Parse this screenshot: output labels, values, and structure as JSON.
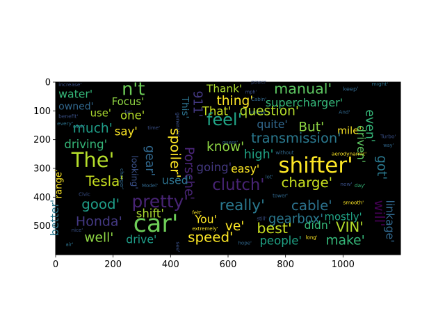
{
  "chart_data": {
    "type": "image",
    "title": "",
    "xlabel": "",
    "ylabel": "",
    "xlim": [
      0,
      1200
    ],
    "ylim": [
      600,
      0
    ],
    "xticks": [
      0,
      200,
      400,
      600,
      800,
      1000
    ],
    "yticks": [
      0,
      100,
      200,
      300,
      400,
      500
    ],
    "background": "#000000",
    "words": [
      {
        "text": "increase'",
        "x": 10,
        "y": 15,
        "size": 18,
        "rot": 0,
        "color": "#3b528b"
      },
      {
        "text": "water'",
        "x": 10,
        "y": 55,
        "size": 38,
        "rot": 0,
        "color": "#35b779"
      },
      {
        "text": "n't",
        "x": 230,
        "y": 45,
        "size": 62,
        "rot": 0,
        "color": "#6ece58"
      },
      {
        "text": "manual'",
        "x": 760,
        "y": 40,
        "size": 50,
        "rot": 0,
        "color": "#5ec962"
      },
      {
        "text": "keep'",
        "x": 1000,
        "y": 30,
        "size": 20,
        "rot": 0,
        "color": "#31688e"
      },
      {
        "text": "might'",
        "x": 1100,
        "y": 12,
        "size": 18,
        "rot": 0,
        "color": "#2c728e"
      },
      {
        "text": "power",
        "x": 680,
        "y": 5,
        "size": 17,
        "rot": 0,
        "color": "#3b528b"
      },
      {
        "text": "Thank'",
        "x": 525,
        "y": 35,
        "size": 37,
        "rot": 0,
        "color": "#addc30"
      },
      {
        "text": "911'",
        "x": 480,
        "y": 30,
        "size": 42,
        "rot": 90,
        "color": "#443983"
      },
      {
        "text": "owned'",
        "x": 10,
        "y": 95,
        "size": 34,
        "rot": 0,
        "color": "#31688e"
      },
      {
        "text": "Focus'",
        "x": 195,
        "y": 80,
        "size": 36,
        "rot": 0,
        "color": "#90d743"
      },
      {
        "text": "thing'",
        "x": 560,
        "y": 80,
        "size": 45,
        "rot": 0,
        "color": "#fde725"
      },
      {
        "text": "supercharger'",
        "x": 730,
        "y": 85,
        "size": 39,
        "rot": 0,
        "color": "#35b779"
      },
      {
        "text": "This'",
        "x": 440,
        "y": 50,
        "size": 33,
        "rot": 90,
        "color": "#2c728e"
      },
      {
        "text": "mph'",
        "x": 660,
        "y": 40,
        "size": 16,
        "rot": 0,
        "color": "#3b528b"
      },
      {
        "text": "Cabin'",
        "x": 680,
        "y": 65,
        "size": 17,
        "rot": 0,
        "color": "#31688e"
      },
      {
        "text": "unless'",
        "x": 675,
        "y": 110,
        "size": 17,
        "rot": 0,
        "color": "#2c728e"
      },
      {
        "text": "And'",
        "x": 985,
        "y": 110,
        "size": 18,
        "rot": 0,
        "color": "#31688e"
      },
      {
        "text": "even'",
        "x": 1080,
        "y": 95,
        "size": 42,
        "rot": 90,
        "color": "#35b779"
      },
      {
        "text": "benefit'",
        "x": 10,
        "y": 125,
        "size": 18,
        "rot": 0,
        "color": "#3b528b"
      },
      {
        "text": "far'",
        "x": 240,
        "y": 110,
        "size": 16,
        "rot": 0,
        "color": "#3b528b"
      },
      {
        "text": "every'",
        "x": 5,
        "y": 150,
        "size": 18,
        "rot": 0,
        "color": "#2c728e"
      },
      {
        "text": "use'",
        "x": 120,
        "y": 120,
        "size": 36,
        "rot": 0,
        "color": "#addc30"
      },
      {
        "text": "one'",
        "x": 225,
        "y": 130,
        "size": 40,
        "rot": 0,
        "color": "#b5de2b"
      },
      {
        "text": "That'",
        "x": 510,
        "y": 115,
        "size": 40,
        "rot": 0,
        "color": "#c8e020"
      },
      {
        "text": "question'",
        "x": 640,
        "y": 115,
        "size": 45,
        "rot": 0,
        "color": "#b5de2b"
      },
      {
        "text": "generate'",
        "x": 420,
        "y": 105,
        "size": 18,
        "rot": 90,
        "color": "#3b528b"
      },
      {
        "text": "click'",
        "x": 60,
        "y": 160,
        "size": 17,
        "rot": 0,
        "color": "#31688e"
      },
      {
        "text": "time'",
        "x": 320,
        "y": 165,
        "size": 17,
        "rot": 0,
        "color": "#3b528b"
      },
      {
        "text": "feel'",
        "x": 525,
        "y": 150,
        "size": 58,
        "rot": 0,
        "color": "#20a486"
      },
      {
        "text": "quite'",
        "x": 700,
        "y": 160,
        "size": 38,
        "rot": 0,
        "color": "#31688e"
      },
      {
        "text": "But'",
        "x": 845,
        "y": 170,
        "size": 45,
        "rot": 0,
        "color": "#8fd744"
      },
      {
        "text": "mile'",
        "x": 980,
        "y": 180,
        "size": 35,
        "rot": 0,
        "color": "#fde725"
      },
      {
        "text": "driven'",
        "x": 1050,
        "y": 150,
        "size": 38,
        "rot": 90,
        "color": "#5ec962"
      },
      {
        "text": "much'",
        "x": 60,
        "y": 175,
        "size": 45,
        "rot": 0,
        "color": "#1f9e89"
      },
      {
        "text": "say'",
        "x": 205,
        "y": 185,
        "size": 40,
        "rot": 0,
        "color": "#fde725"
      },
      {
        "text": "spoiler'",
        "x": 400,
        "y": 160,
        "size": 48,
        "rot": 90,
        "color": "#fde725"
      },
      {
        "text": "guess'",
        "x": 580,
        "y": 215,
        "size": 17,
        "rot": 0,
        "color": "#31688e"
      },
      {
        "text": "transmission'",
        "x": 680,
        "y": 210,
        "size": 47,
        "rot": 0,
        "color": "#2a788e"
      },
      {
        "text": "Turbo'",
        "x": 1130,
        "y": 195,
        "size": 18,
        "rot": 0,
        "color": "#3b528b"
      },
      {
        "text": "way'",
        "x": 1140,
        "y": 225,
        "size": 16,
        "rot": 0,
        "color": "#31688e"
      },
      {
        "text": "driving'",
        "x": 30,
        "y": 230,
        "size": 40,
        "rot": 0,
        "color": "#35b779"
      },
      {
        "text": "gear'",
        "x": 315,
        "y": 220,
        "size": 42,
        "rot": 90,
        "color": "#31688e"
      },
      {
        "text": "Porsche'",
        "x": 450,
        "y": 225,
        "size": 44,
        "rot": 90,
        "color": "#482475"
      },
      {
        "text": "know'",
        "x": 525,
        "y": 240,
        "size": 45,
        "rot": 0,
        "color": "#8fd744"
      },
      {
        "text": "high'",
        "x": 655,
        "y": 265,
        "size": 42,
        "rot": 0,
        "color": "#20a486"
      },
      {
        "text": "without",
        "x": 765,
        "y": 250,
        "size": 17,
        "rot": 0,
        "color": "#31688e"
      },
      {
        "text": "aerodynamic'",
        "x": 960,
        "y": 255,
        "size": 18,
        "rot": 0,
        "color": "#fde725"
      },
      {
        "text": "got'",
        "x": 1120,
        "y": 255,
        "size": 44,
        "rot": 90,
        "color": "#2a788e"
      },
      {
        "text": "The'",
        "x": 55,
        "y": 295,
        "size": 70,
        "rot": 0,
        "color": "#b5de2b"
      },
      {
        "text": "looking'",
        "x": 265,
        "y": 255,
        "size": 30,
        "rot": 90,
        "color": "#3b528b"
      },
      {
        "text": "charger'",
        "x": 225,
        "y": 300,
        "size": 18,
        "rot": 90,
        "color": "#31688e"
      },
      {
        "text": "going'",
        "x": 490,
        "y": 310,
        "size": 40,
        "rot": 0,
        "color": "#443983"
      },
      {
        "text": "easy'",
        "x": 610,
        "y": 315,
        "size": 38,
        "rot": 0,
        "color": "#fde725"
      },
      {
        "text": "shifter'",
        "x": 775,
        "y": 315,
        "size": 75,
        "rot": 0,
        "color": "#fde725"
      },
      {
        "text": "lot'",
        "x": 730,
        "y": 335,
        "size": 17,
        "rot": 0,
        "color": "#31688e"
      },
      {
        "text": "Tesla'",
        "x": 105,
        "y": 360,
        "size": 48,
        "rot": 0,
        "color": "#c8e020"
      },
      {
        "text": "Model'",
        "x": 300,
        "y": 365,
        "size": 17,
        "rot": 0,
        "color": "#31688e"
      },
      {
        "text": "used'",
        "x": 370,
        "y": 355,
        "size": 38,
        "rot": 0,
        "color": "#2c728e"
      },
      {
        "text": "clutch'",
        "x": 545,
        "y": 375,
        "size": 55,
        "rot": 0,
        "color": "#482475"
      },
      {
        "text": "charge'",
        "x": 785,
        "y": 365,
        "size": 48,
        "rot": 0,
        "color": "#c8e020"
      },
      {
        "text": "new'",
        "x": 990,
        "y": 360,
        "size": 18,
        "rot": 0,
        "color": "#3b528b"
      },
      {
        "text": "day'",
        "x": 1040,
        "y": 365,
        "size": 18,
        "rot": 0,
        "color": "#35b779"
      },
      {
        "text": "range'",
        "x": 20,
        "y": 405,
        "size": 32,
        "rot": -90,
        "color": "#fde725"
      },
      {
        "text": "Civic",
        "x": 80,
        "y": 395,
        "size": 17,
        "rot": 0,
        "color": "#3b528b"
      },
      {
        "text": "good'",
        "x": 90,
        "y": 440,
        "size": 48,
        "rot": 0,
        "color": "#1f9e89"
      },
      {
        "text": "pretty'",
        "x": 265,
        "y": 435,
        "size": 60,
        "rot": 0,
        "color": "#482475"
      },
      {
        "text": "tower'",
        "x": 755,
        "y": 400,
        "size": 17,
        "rot": 0,
        "color": "#31688e"
      },
      {
        "text": "smooth'",
        "x": 1000,
        "y": 425,
        "size": 18,
        "rot": 0,
        "color": "#fde725"
      },
      {
        "text": "really'",
        "x": 570,
        "y": 445,
        "size": 52,
        "rot": 0,
        "color": "#2a788e"
      },
      {
        "text": "cable'",
        "x": 820,
        "y": 445,
        "size": 48,
        "rot": 0,
        "color": "#2c728e"
      },
      {
        "text": "felt'",
        "x": 475,
        "y": 460,
        "size": 17,
        "rot": 0,
        "color": "#fde725"
      },
      {
        "text": "will'",
        "x": 1110,
        "y": 410,
        "size": 48,
        "rot": 90,
        "color": "#440154"
      },
      {
        "text": "linkage'",
        "x": 1150,
        "y": 410,
        "size": 38,
        "rot": 90,
        "color": "#31688e"
      },
      {
        "text": "shift'",
        "x": 280,
        "y": 470,
        "size": 40,
        "rot": 0,
        "color": "#addc30"
      },
      {
        "text": "You'",
        "x": 485,
        "y": 490,
        "size": 38,
        "rot": 0,
        "color": "#fde725"
      },
      {
        "text": "gearbox'",
        "x": 740,
        "y": 490,
        "size": 44,
        "rot": 0,
        "color": "#2a788e"
      },
      {
        "text": "mostly'",
        "x": 935,
        "y": 480,
        "size": 36,
        "rot": 0,
        "color": "#20a486"
      },
      {
        "text": "better'",
        "x": 10,
        "y": 535,
        "size": 38,
        "rot": -90,
        "color": "#2a788e"
      },
      {
        "text": "Honda'",
        "x": 70,
        "y": 500,
        "size": 46,
        "rot": 0,
        "color": "#443983"
      },
      {
        "text": "car'",
        "x": 270,
        "y": 520,
        "size": 85,
        "rot": 0,
        "color": "#6ece58"
      },
      {
        "text": "extremely'",
        "x": 475,
        "y": 515,
        "size": 17,
        "rot": 0,
        "color": "#fde725"
      },
      {
        "text": "ve'",
        "x": 590,
        "y": 515,
        "size": 45,
        "rot": 0,
        "color": "#fde725"
      },
      {
        "text": "best'",
        "x": 700,
        "y": 525,
        "size": 50,
        "rot": 0,
        "color": "#c8e020"
      },
      {
        "text": "didn'",
        "x": 865,
        "y": 510,
        "size": 38,
        "rot": 0,
        "color": "#35b779"
      },
      {
        "text": "VIN'",
        "x": 975,
        "y": 520,
        "size": 48,
        "rot": 0,
        "color": "#b5de2b"
      },
      {
        "text": "long'",
        "x": 870,
        "y": 545,
        "size": 17,
        "rot": 0,
        "color": "#fde725"
      },
      {
        "text": "well'",
        "x": 100,
        "y": 555,
        "size": 45,
        "rot": 0,
        "color": "#8fd744"
      },
      {
        "text": "drive'",
        "x": 245,
        "y": 560,
        "size": 38,
        "rot": 0,
        "color": "#1f9e89"
      },
      {
        "text": "see'",
        "x": 420,
        "y": 555,
        "size": 18,
        "rot": 90,
        "color": "#3b528b"
      },
      {
        "text": "speed'",
        "x": 460,
        "y": 555,
        "size": 48,
        "rot": 0,
        "color": "#fde725"
      },
      {
        "text": "hope'",
        "x": 635,
        "y": 565,
        "size": 17,
        "rot": 0,
        "color": "#31688e"
      },
      {
        "text": "people'",
        "x": 710,
        "y": 565,
        "size": 40,
        "rot": 0,
        "color": "#20a486"
      },
      {
        "text": "make'",
        "x": 940,
        "y": 565,
        "size": 45,
        "rot": 0,
        "color": "#35b779"
      },
      {
        "text": "still'",
        "x": 700,
        "y": 480,
        "size": 17,
        "rot": 0,
        "color": "#3b528b"
      },
      {
        "text": "nice'",
        "x": 55,
        "y": 520,
        "size": 17,
        "rot": 0,
        "color": "#3b528b"
      },
      {
        "text": "air'",
        "x": 35,
        "y": 570,
        "size": 17,
        "rot": 0,
        "color": "#2c728e"
      }
    ]
  }
}
